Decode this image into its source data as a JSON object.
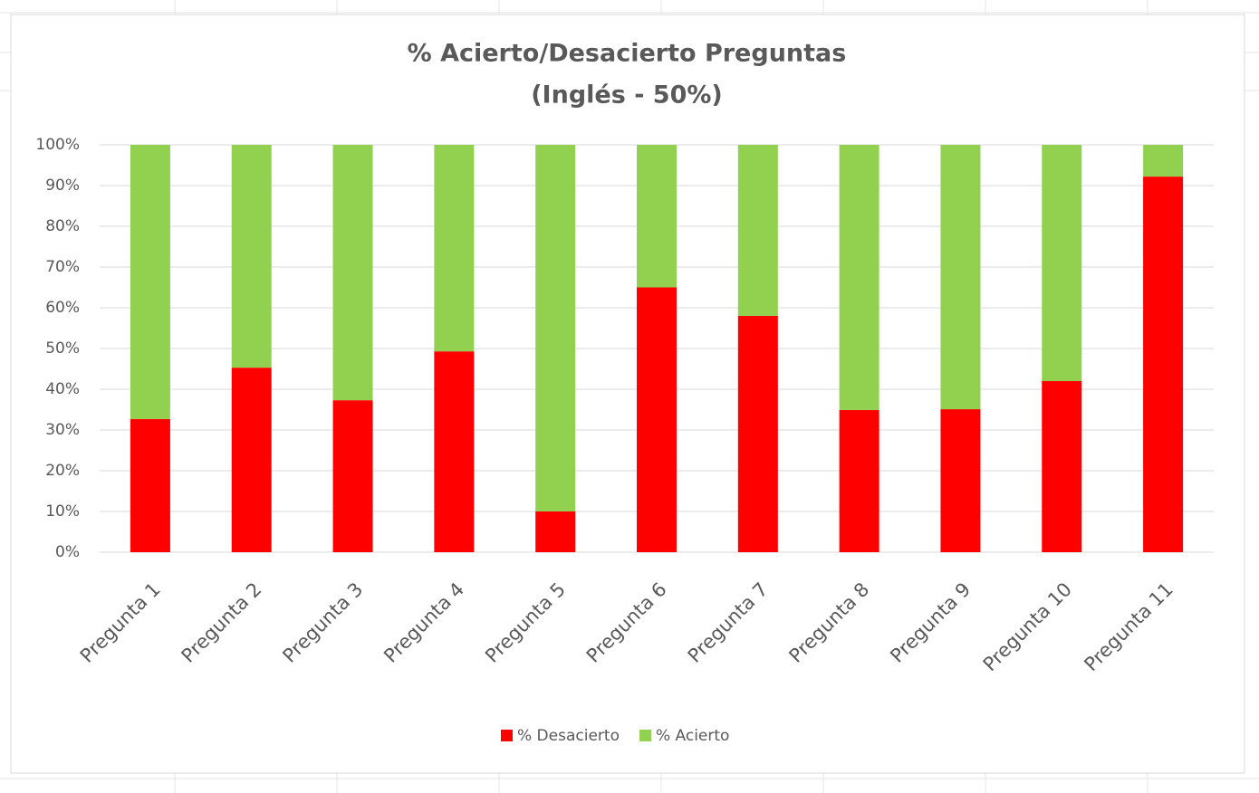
{
  "chart_data": {
    "type": "stacked_bar",
    "title": "% Acierto/Desacierto Preguntas",
    "subtitle": "(Inglés - 50%)",
    "categories": [
      "Pregunta 1",
      "Pregunta 2",
      "Pregunta 3",
      "Pregunta 4",
      "Pregunta 5",
      "Pregunta 6",
      "Pregunta 7",
      "Pregunta 8",
      "Pregunta 9",
      "Pregunta 10",
      "Pregunta 11"
    ],
    "series": [
      {
        "name": "% Desacierto",
        "color": "#ff0000",
        "values": [
          32.7,
          45.3,
          37.3,
          49.3,
          10,
          65,
          58,
          34.9,
          35.1,
          42,
          92.2
        ]
      },
      {
        "name": "% Acierto",
        "color": "#92d050",
        "values": [
          67.3,
          54.7,
          62.7,
          50.7,
          90,
          35,
          42,
          65.1,
          64.9,
          58,
          7.8
        ]
      }
    ],
    "ylim": [
      0,
      100
    ],
    "yticks": [
      {
        "value": 0,
        "label": "0%"
      },
      {
        "value": 10,
        "label": "10%"
      },
      {
        "value": 20,
        "label": "20%"
      },
      {
        "value": 30,
        "label": "30%"
      },
      {
        "value": 40,
        "label": "40%"
      },
      {
        "value": 50,
        "label": "50%"
      },
      {
        "value": 60,
        "label": "60%"
      },
      {
        "value": 70,
        "label": "70%"
      },
      {
        "value": 80,
        "label": "80%"
      },
      {
        "value": 90,
        "label": "90%"
      },
      {
        "value": 100,
        "label": "100%"
      }
    ],
    "grid": true,
    "legend": "bottom"
  }
}
